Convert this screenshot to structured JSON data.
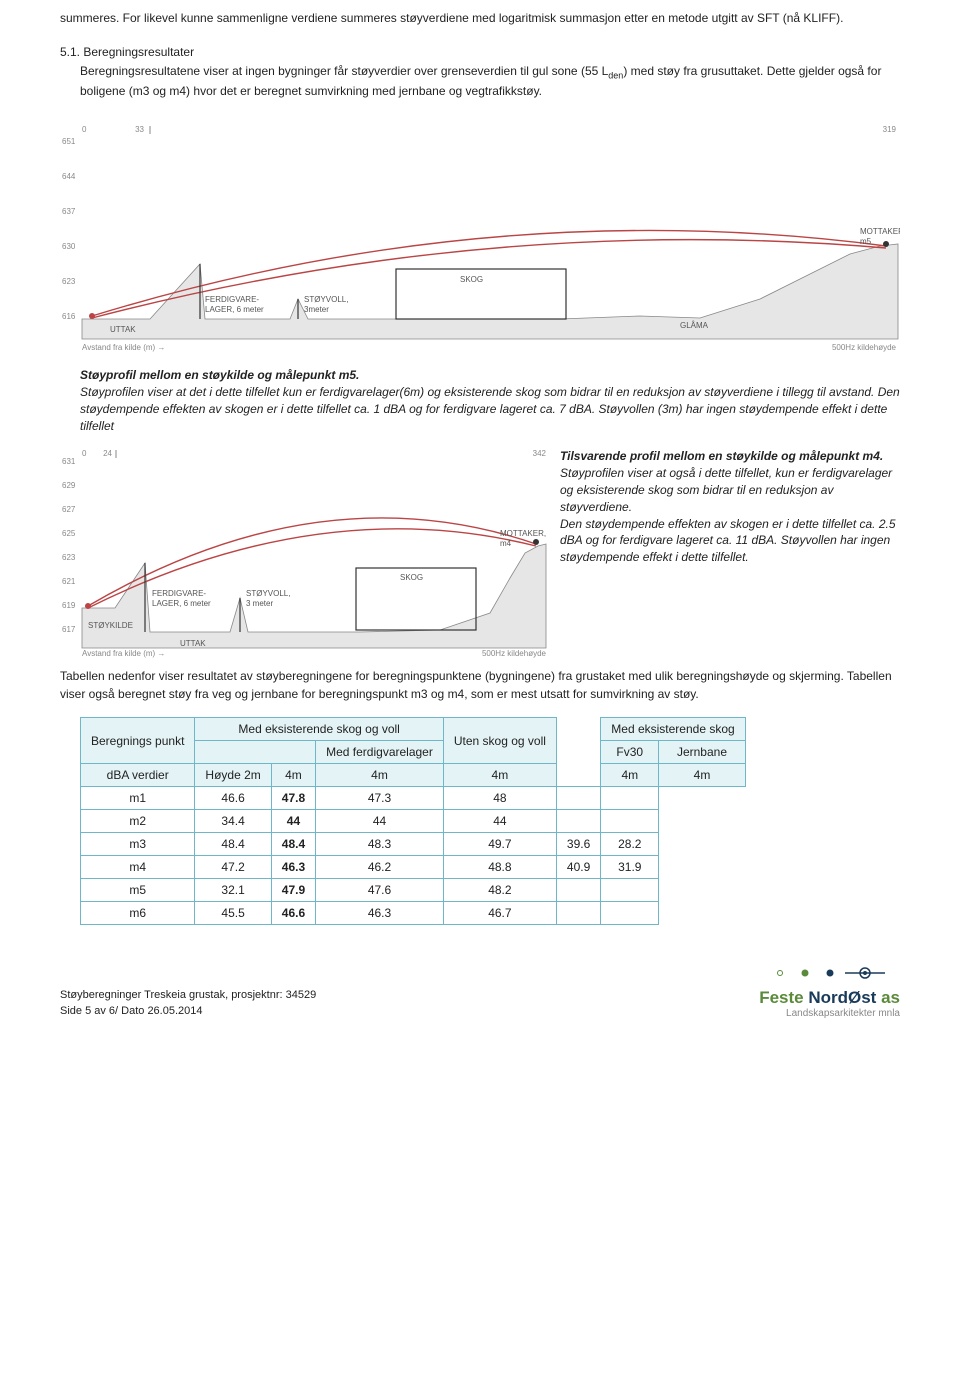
{
  "intro": {
    "p1": "summeres. For likevel kunne sammenligne verdiene summeres støyverdiene med logaritmisk summasjon etter en metode utgitt av SFT (nå KLIFF).",
    "secnum": "5.1. Beregningsresultater",
    "p2a": "Beregningsresultatene viser at ingen bygninger får støyverdier over grenseverdien til gul sone (55 L",
    "p2sub": "den",
    "p2b": ") med støy fra grusuttaket. Dette gjelder også for boligene (m3 og m4) hvor det er beregnet sumvirkning med jernbane og vegtrafikkstøy."
  },
  "chart1": {
    "yticks": [
      "651",
      "644",
      "637",
      "630",
      "623",
      "616"
    ],
    "xleft": "0",
    "xmid": "33",
    "xright": "319",
    "axislabel": "Avstand fra kilde (m) →",
    "khz": "500Hz kildehøyde",
    "labels": {
      "uttak": "UTTAK",
      "ferdig": "FERDIGVARE-\nLAGER, 6 meter",
      "stovoll": "STØYVOLL,\n3meter",
      "skog": "SKOG",
      "glama": "GLÅMA",
      "mottaker": "MOTTAKER,\nm5"
    }
  },
  "caption1": {
    "title": "Støyprofil mellom en støykilde og målepunkt m5.",
    "body": "Støyprofilen viser at det i dette tilfellet kun er ferdigvarelager(6m) og eksisterende skog som bidrar til en reduksjon av støyverdiene i tillegg til avstand. Den støydempende effekten av skogen er i dette tilfellet ca. 1 dBA og for ferdigvare lageret ca. 7 dBA. Støyvollen (3m) har ingen støydempende effekt i dette tilfellet"
  },
  "chart2": {
    "yticks": [
      "631",
      "629",
      "627",
      "625",
      "623",
      "621",
      "619",
      "617"
    ],
    "xleft": "0",
    "xmid": "24",
    "xright": "342",
    "axislabel": "Avstand fra kilde (m) →",
    "khz": "500Hz kildehøyde",
    "labels": {
      "uttak": "UTTAK",
      "stokilde": "STØYKILDE",
      "ferdig": "FERDIGVARE-\nLAGER, 6 meter",
      "stovoll": "STØYVOLL,\n3 meter",
      "skog": "SKOG",
      "mottaker": "MOTTAKER,\nm4"
    }
  },
  "caption2": {
    "t1": "Tilsvarende profil mellom en støykilde og målepunkt m4.",
    "t2": "Støyprofilen viser at også i dette tilfellet, kun er ferdigvarelager og eksisterende skog som bidrar til en reduksjon av støyverdiene.",
    "t3": "Den støydempende effekten av skogen er i dette tilfellet ca. 2.5 dBA og for ferdigvare lageret ca. 11 dBA. Støyvollen har ingen støydempende effekt i dette tilfellet."
  },
  "tablepara": "Tabellen nedenfor viser resultatet av støyberegningene for beregningspunktene (bygningene) fra grustaket med ulik beregningshøyde og skjerming. Tabellen viser også beregnet støy fra veg og jernbane for beregningspunkt m3 og m4, som er mest utsatt for sumvirkning av støy.",
  "table": {
    "h1": "Beregnings punkt",
    "h2": "Med eksisterende skog og voll",
    "h3": "Med ferdigvarelager",
    "h4": "Uten skog og voll",
    "h5": "Med eksisterende skog",
    "h6": "Fv30",
    "h7": "Jernbane",
    "dba": "dBA verdier",
    "h2a": "Høyde 2m",
    "h2b": "4m",
    "h2c": "4m",
    "h2d": "4m",
    "h2e": "4m",
    "h2f": "4m",
    "rows": [
      {
        "p": "m1",
        "a": "46.6",
        "b": "47.8",
        "c": "47.3",
        "d": "48",
        "e": "",
        "f": ""
      },
      {
        "p": "m2",
        "a": "34.4",
        "b": "44",
        "c": "44",
        "d": "44",
        "e": "",
        "f": ""
      },
      {
        "p": "m3",
        "a": "48.4",
        "b": "48.4",
        "c": "48.3",
        "d": "49.7",
        "e": "39.6",
        "f": "28.2"
      },
      {
        "p": "m4",
        "a": "47.2",
        "b": "46.3",
        "c": "46.2",
        "d": "48.8",
        "e": "40.9",
        "f": "31.9"
      },
      {
        "p": "m5",
        "a": "32.1",
        "b": "47.9",
        "c": "47.6",
        "d": "48.2",
        "e": "",
        "f": ""
      },
      {
        "p": "m6",
        "a": "45.5",
        "b": "46.6",
        "c": "46.3",
        "d": "46.7",
        "e": "",
        "f": ""
      }
    ]
  },
  "footer": {
    "l1": "Støyberegninger Treskeia grustak, prosjektnr: 34529",
    "l2": "Side 5 av 6/ Dato 26.05.2014",
    "brand1": "Feste ",
    "brand2": "NordØst ",
    "brand3": "as",
    "sub": "Landskapsarkitekter mnla"
  }
}
